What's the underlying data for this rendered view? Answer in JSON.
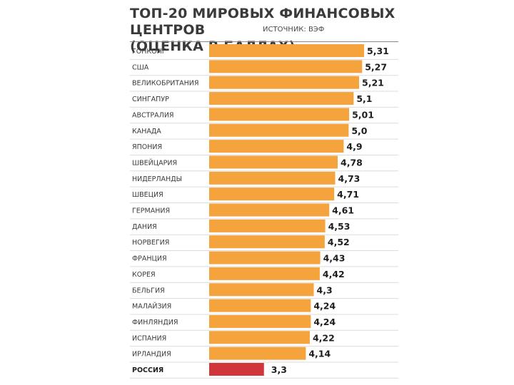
{
  "header": {
    "title_line1": "ТОП-20 МИРОВЫХ ФИНАНСОВЫХ ЦЕНТРОВ",
    "title_line2": "(ОЦЕНКА В БАЛЛАХ)",
    "source": "ИСТОЧНИК: ВЭФ"
  },
  "chart_data": {
    "type": "bar",
    "orientation": "horizontal",
    "title": "ТОП-20 МИРОВЫХ ФИНАНСОВЫХ ЦЕНТРОВ (ОЦЕНКА В БАЛЛАХ)",
    "source": "ИСТОЧНИК: ВЭФ",
    "categories": [
      "ГОНКОНГ",
      "США",
      "ВЕЛИКОБРИТАНИЯ",
      "СИНГАПУР",
      "АВСТРАЛИЯ",
      "КАНАДА",
      "ЯПОНИЯ",
      "ШВЕЙЦАРИЯ",
      "НИДЕРЛАНДЫ",
      "ШВЕЦИЯ",
      "ГЕРМАНИЯ",
      "ДАНИЯ",
      "НОРВЕГИЯ",
      "ФРАНЦИЯ",
      "КОРЕЯ",
      "БЕЛЬГИЯ",
      "МАЛАЙЗИЯ",
      "ФИНЛЯНДИЯ",
      "ИСПАНИЯ",
      "ИРЛАНДИЯ",
      "РОССИЯ"
    ],
    "values": [
      5.31,
      5.27,
      5.21,
      5.1,
      5.01,
      5.0,
      4.9,
      4.78,
      4.73,
      4.71,
      4.61,
      4.53,
      4.52,
      4.43,
      4.42,
      4.3,
      4.24,
      4.24,
      4.22,
      4.14,
      3.3
    ],
    "value_labels": [
      "5,31",
      "5,27",
      "5,21",
      "5,1",
      "5,01",
      "5,0",
      "4,9",
      "4,78",
      "4,73",
      "4,71",
      "4,61",
      "4,53",
      "4,52",
      "4,43",
      "4,42",
      "4,3",
      "4,24",
      "4,24",
      "4,22",
      "4,14",
      "3,3"
    ],
    "highlight_category": "РОССИЯ",
    "xlim": [
      2.2,
      5.31
    ],
    "grid": false,
    "colors": {
      "bar": "#F5A33C",
      "highlight": "#D1373A",
      "label": "#3a3a3a",
      "value": "#1e1e1e"
    }
  }
}
